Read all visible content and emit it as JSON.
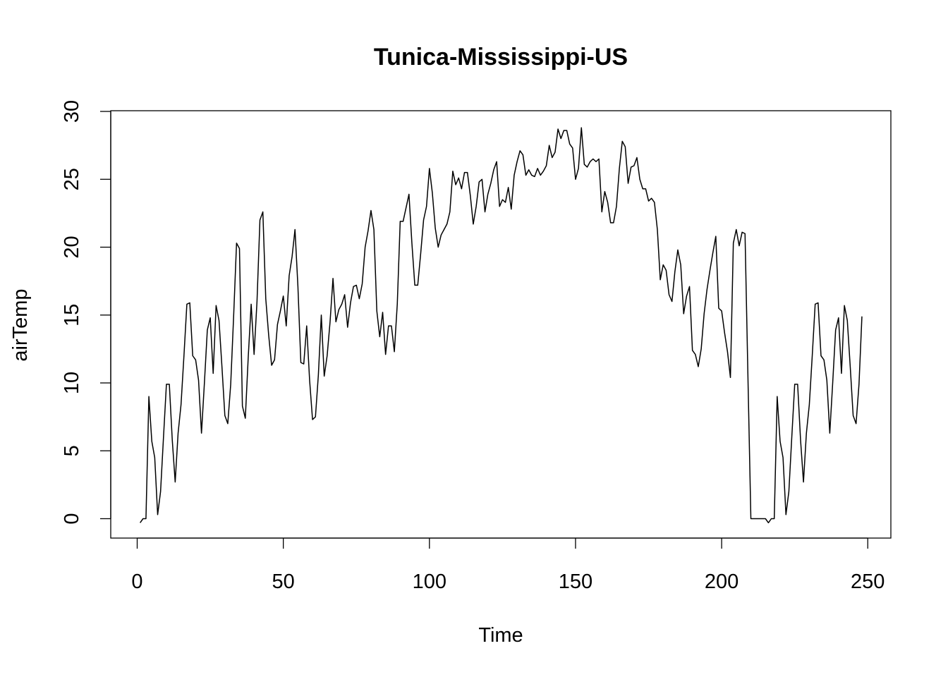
{
  "chart_data": {
    "type": "line",
    "title": "Tunica-Mississippi-US",
    "xlabel": "Time",
    "ylabel": "airTemp",
    "xlim": [
      1,
      248
    ],
    "ylim": [
      -0.3,
      28.8
    ],
    "x_ticks": [
      0,
      50,
      100,
      150,
      200,
      250
    ],
    "y_ticks": [
      0,
      5,
      10,
      15,
      20,
      25,
      30
    ],
    "grid": false,
    "legend": "none",
    "line_color": "#000000",
    "x_start": 1,
    "series": [
      {
        "values": [
          -0.3,
          0,
          0,
          9.0,
          5.7,
          4.5,
          0.3,
          2.0,
          6.0,
          9.9,
          9.9,
          5.8,
          2.7,
          6.3,
          8.4,
          12.0,
          15.8,
          15.9,
          12.0,
          11.7,
          10.2,
          6.3,
          10.0,
          13.9,
          14.8,
          10.7,
          15.7,
          14.6,
          11.2,
          7.6,
          7.0,
          9.9,
          14.9,
          20.3,
          19.9,
          8.3,
          7.4,
          11.9,
          15.8,
          12.1,
          16.0,
          22.0,
          22.6,
          16.2,
          13.5,
          11.3,
          11.7,
          14.3,
          15.3,
          16.4,
          14.2,
          17.9,
          19.3,
          21.3,
          17.1,
          11.5,
          11.4,
          14.2,
          10.2,
          7.3,
          7.5,
          10.6,
          15.0,
          10.5,
          12.0,
          14.5,
          17.7,
          14.5,
          15.4,
          15.8,
          16.5,
          14.1,
          15.9,
          17.1,
          17.2,
          16.2,
          17.3,
          20.0,
          21.2,
          22.7,
          21.3,
          15.3,
          13.4,
          15.2,
          12.1,
          14.2,
          14.2,
          12.3,
          15.8,
          21.9,
          21.9,
          22.9,
          23.9,
          20.3,
          17.2,
          17.2,
          19.5,
          22.0,
          23.0,
          25.8,
          24.0,
          21.4,
          20.0,
          20.9,
          21.3,
          21.7,
          22.6,
          25.6,
          24.6,
          25.1,
          24.3,
          25.5,
          25.5,
          23.8,
          21.7,
          23.0,
          24.8,
          25.0,
          22.6,
          23.9,
          24.7,
          25.7,
          26.3,
          23.0,
          23.5,
          23.3,
          24.4,
          22.8,
          25.3,
          26.3,
          27.1,
          26.8,
          25.3,
          25.7,
          25.3,
          25.2,
          25.8,
          25.3,
          25.6,
          26.0,
          27.5,
          26.6,
          27.0,
          28.7,
          28.0,
          28.6,
          28.6,
          27.6,
          27.3,
          25.0,
          25.8,
          28.8,
          26.1,
          25.9,
          26.3,
          26.5,
          26.3,
          26.5,
          22.6,
          24.1,
          23.3,
          21.8,
          21.8,
          23.0,
          25.8,
          27.8,
          27.4,
          24.7,
          25.9,
          26.0,
          26.6,
          25.0,
          24.3,
          24.3,
          23.4,
          23.6,
          23.3,
          21.3,
          17.6,
          18.7,
          18.3,
          16.5,
          16.0,
          18.2,
          19.8,
          18.7,
          15.1,
          16.4,
          17.1,
          12.4,
          12.1,
          11.2,
          12.5,
          15.1,
          16.9,
          18.3,
          19.6,
          20.8,
          15.5,
          15.3,
          13.7,
          12.3,
          10.4,
          20.3,
          21.3,
          20.1,
          21.1,
          21.0,
          10.4,
          0,
          0,
          0,
          0,
          0,
          0,
          -0.3,
          0,
          0,
          9.0,
          5.7,
          4.5,
          0.3,
          2.0,
          6.0,
          9.9,
          9.9,
          5.8,
          2.7,
          6.3,
          8.4,
          12.0,
          15.8,
          15.9,
          12.0,
          11.7,
          10.2,
          6.3,
          10.0,
          13.9,
          14.8,
          10.7,
          15.7,
          14.6,
          11.2,
          7.6,
          7.0,
          9.9,
          14.9
        ]
      }
    ]
  }
}
